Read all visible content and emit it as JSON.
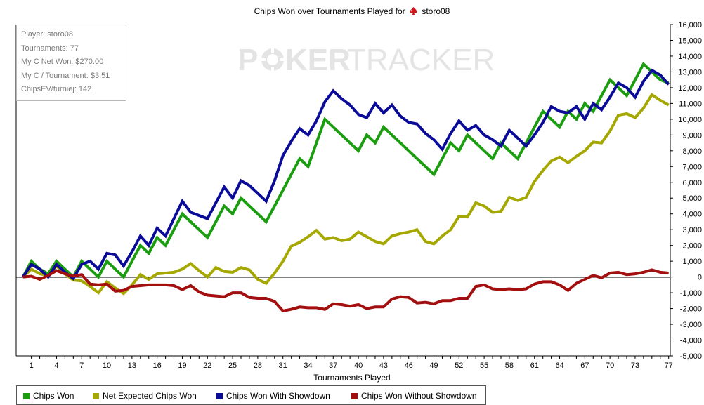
{
  "chart_data": {
    "type": "line",
    "title": "Chips Won over Tournaments Played for",
    "player_name": "storo08",
    "xlabel": "Tournaments Played",
    "ylabel": "",
    "xlim": [
      0,
      78
    ],
    "ylim": [
      -5000,
      16000
    ],
    "x_ticks": [
      1,
      4,
      7,
      10,
      13,
      16,
      19,
      22,
      25,
      28,
      31,
      34,
      37,
      40,
      43,
      46,
      49,
      52,
      55,
      58,
      61,
      64,
      67,
      70,
      73,
      77
    ],
    "y_ticks": [
      -5000,
      -4000,
      -3000,
      -2000,
      -1000,
      0,
      1000,
      2000,
      3000,
      4000,
      5000,
      6000,
      7000,
      8000,
      9000,
      10000,
      11000,
      12000,
      13000,
      14000,
      15000,
      16000
    ],
    "y_tick_labels": [
      "-5,000",
      "-4,000",
      "-3,000",
      "-2,000",
      "-1,000",
      "0",
      "1,000",
      "2,000",
      "3,000",
      "4,000",
      "5,000",
      "6,000",
      "7,000",
      "8,000",
      "9,000",
      "10,000",
      "11,000",
      "12,000",
      "13,000",
      "14,000",
      "15,000",
      "16,000"
    ],
    "grid": false,
    "legend_position": "bottom",
    "series": [
      {
        "name": "Net Expected Chips Won",
        "color": "#a5a800",
        "x": [
          0,
          1,
          2,
          3,
          4,
          5,
          6,
          7,
          8,
          9,
          10,
          11,
          12,
          13,
          14,
          15,
          16,
          17,
          18,
          19,
          20,
          21,
          22,
          23,
          24,
          25,
          26,
          27,
          28,
          29,
          30,
          31,
          32,
          33,
          34,
          35,
          36,
          37,
          38,
          39,
          40,
          41,
          42,
          43,
          44,
          45,
          46,
          47,
          48,
          49,
          50,
          51,
          52,
          53,
          54,
          55,
          56,
          57,
          58,
          59,
          60,
          61,
          62,
          63,
          64,
          65,
          66,
          67,
          68,
          69,
          70,
          71,
          72,
          73,
          74,
          75,
          76,
          77
        ],
        "values": [
          0,
          500,
          200,
          100,
          700,
          200,
          -200,
          -250,
          -600,
          -1000,
          -300,
          -700,
          -1050,
          -500,
          150,
          -150,
          200,
          250,
          300,
          500,
          850,
          400,
          0,
          600,
          350,
          300,
          600,
          450,
          -150,
          -400,
          250,
          1000,
          1950,
          2200,
          2550,
          2950,
          2400,
          2500,
          2300,
          2400,
          2850,
          2550,
          2250,
          2100,
          2600,
          2750,
          2850,
          3000,
          2250,
          2100,
          2600,
          3000,
          3850,
          3800,
          4700,
          4500,
          4100,
          4150,
          5050,
          4850,
          5050,
          6050,
          6750,
          7350,
          7600,
          7250,
          7650,
          8000,
          8550,
          8500,
          9250,
          10250,
          10350,
          10100,
          10700,
          11550,
          11200,
          10900
        ]
      },
      {
        "name": "Chips Won",
        "color": "#1a9e0f",
        "x": [
          0,
          1,
          2,
          3,
          4,
          5,
          6,
          7,
          8,
          9,
          10,
          11,
          12,
          13,
          14,
          15,
          16,
          17,
          18,
          19,
          20,
          21,
          22,
          23,
          24,
          25,
          26,
          27,
          28,
          29,
          30,
          31,
          32,
          33,
          34,
          35,
          36,
          37,
          38,
          39,
          40,
          41,
          42,
          43,
          44,
          45,
          46,
          47,
          48,
          49,
          50,
          51,
          52,
          53,
          54,
          55,
          56,
          57,
          58,
          59,
          60,
          61,
          62,
          63,
          64,
          65,
          66,
          67,
          68,
          69,
          70,
          71,
          72,
          73,
          74,
          75,
          76,
          77
        ],
        "values": [
          0,
          1000,
          500,
          200,
          1000,
          500,
          0,
          1000,
          500,
          0,
          1000,
          500,
          0,
          1000,
          2000,
          1500,
          2500,
          2000,
          3000,
          4000,
          3500,
          3000,
          2500,
          3500,
          4500,
          4000,
          5000,
          4500,
          4000,
          3500,
          4500,
          5500,
          6500,
          7500,
          7000,
          8500,
          10000,
          9500,
          9000,
          8500,
          8000,
          9000,
          8500,
          9500,
          9000,
          8500,
          8000,
          7500,
          7000,
          6500,
          7500,
          8500,
          8000,
          9000,
          8500,
          8000,
          7500,
          8500,
          8000,
          7500,
          8500,
          9500,
          10500,
          10000,
          9500,
          10500,
          10000,
          11000,
          10500,
          11500,
          12500,
          12000,
          11500,
          12500,
          13500,
          13000,
          12500,
          12300
        ]
      },
      {
        "name": "Chips Won With Showdown",
        "color": "#0b0b99",
        "x": [
          0,
          1,
          2,
          3,
          4,
          5,
          6,
          7,
          8,
          9,
          10,
          11,
          12,
          13,
          14,
          15,
          16,
          17,
          18,
          19,
          20,
          21,
          22,
          23,
          24,
          25,
          26,
          27,
          28,
          29,
          30,
          31,
          32,
          33,
          34,
          35,
          36,
          37,
          38,
          39,
          40,
          41,
          42,
          43,
          44,
          45,
          46,
          47,
          48,
          49,
          50,
          51,
          52,
          53,
          54,
          55,
          56,
          57,
          58,
          59,
          60,
          61,
          62,
          63,
          64,
          65,
          66,
          67,
          68,
          69,
          70,
          71,
          72,
          73,
          74,
          75,
          76,
          77
        ],
        "values": [
          0,
          800,
          500,
          0,
          800,
          300,
          -100,
          800,
          1000,
          500,
          1500,
          1400,
          700,
          1600,
          2600,
          2000,
          3100,
          2600,
          3700,
          4800,
          4100,
          3900,
          3700,
          4700,
          5700,
          5000,
          6100,
          5800,
          5300,
          4800,
          6100,
          7700,
          8600,
          9400,
          9000,
          9900,
          11100,
          11800,
          11300,
          10900,
          10300,
          10100,
          11000,
          10400,
          10900,
          10200,
          9800,
          9700,
          9100,
          8700,
          8100,
          9100,
          9900,
          9300,
          9600,
          9000,
          8700,
          8300,
          9300,
          8800,
          8300,
          9000,
          9800,
          10800,
          10500,
          10400,
          10800,
          10000,
          11000,
          10600,
          11400,
          12300,
          12000,
          11400,
          12400,
          13100,
          12800,
          12200
        ]
      },
      {
        "name": "Chips Won Without Showdown",
        "color": "#a30f0f",
        "x": [
          0,
          1,
          2,
          3,
          4,
          5,
          6,
          7,
          8,
          9,
          10,
          11,
          12,
          13,
          14,
          15,
          16,
          17,
          18,
          19,
          20,
          21,
          22,
          23,
          24,
          25,
          26,
          27,
          28,
          29,
          30,
          31,
          32,
          33,
          34,
          35,
          36,
          37,
          38,
          39,
          40,
          41,
          42,
          43,
          44,
          45,
          46,
          47,
          48,
          49,
          50,
          51,
          52,
          53,
          54,
          55,
          56,
          57,
          58,
          59,
          60,
          61,
          62,
          63,
          64,
          65,
          66,
          67,
          68,
          69,
          70,
          71,
          72,
          73,
          74,
          75,
          76,
          77
        ],
        "values": [
          0,
          50,
          -150,
          100,
          400,
          200,
          50,
          150,
          -450,
          -500,
          -450,
          -900,
          -850,
          -600,
          -550,
          -500,
          -500,
          -500,
          -550,
          -800,
          -550,
          -950,
          -1150,
          -1200,
          -1250,
          -1000,
          -1000,
          -1300,
          -1350,
          -1350,
          -1550,
          -2150,
          -2050,
          -1900,
          -1950,
          -1950,
          -2050,
          -1700,
          -1750,
          -1850,
          -1750,
          -2000,
          -1900,
          -1900,
          -1400,
          -1250,
          -1300,
          -1650,
          -1600,
          -1700,
          -1500,
          -1500,
          -1350,
          -1350,
          -600,
          -500,
          -750,
          -800,
          -750,
          -800,
          -750,
          -450,
          -300,
          -300,
          -500,
          -850,
          -400,
          -150,
          100,
          -50,
          250,
          300,
          150,
          200,
          300,
          450,
          300,
          250
        ]
      }
    ]
  },
  "info_box": {
    "player": "Player: storo08",
    "tournaments": "Tournaments: 77",
    "net_won": "My C Net Won: $270.00",
    "per_tournament": "My C / Tournament: $3.51",
    "chips_ev": "ChipsEV/turniej: 142"
  },
  "watermark": {
    "part1": "P",
    "part2": "KER",
    "part3": "TRACKER"
  },
  "legend": [
    {
      "label": "Chips Won",
      "color": "#1a9e0f"
    },
    {
      "label": "Net Expected Chips Won",
      "color": "#a5a800"
    },
    {
      "label": "Chips Won With Showdown",
      "color": "#0b0b99"
    },
    {
      "label": "Chips Won Without Showdown",
      "color": "#a30f0f"
    }
  ],
  "icons": {
    "title_icon": "spade-icon",
    "watermark_icon": "poker-chip-icon"
  }
}
